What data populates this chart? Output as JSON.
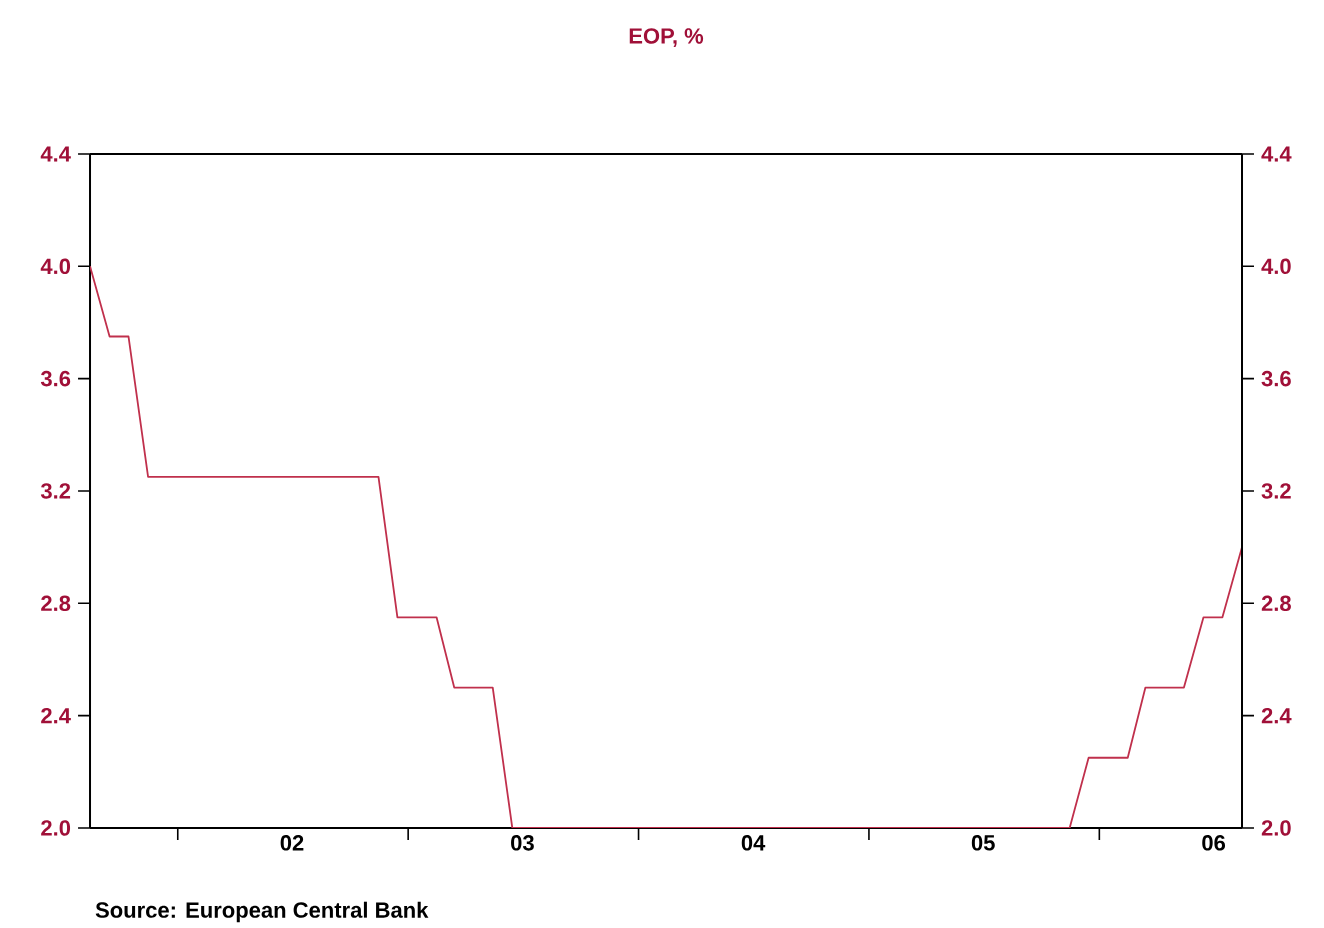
{
  "chart_data": {
    "type": "line",
    "title": "EOP, %",
    "x": [
      "2001-08-15",
      "2001-09-15",
      "2001-10-15",
      "2001-11-15",
      "2002-11-15",
      "2002-12-15",
      "2003-02-15",
      "2003-03-15",
      "2003-05-15",
      "2003-06-15",
      "2005-11-15",
      "2005-12-15",
      "2006-02-15",
      "2006-03-15",
      "2006-05-15",
      "2006-06-15",
      "2006-07-15",
      "2006-08-15"
    ],
    "series": [
      {
        "color": "#c0304c",
        "values": [
          4.0,
          3.75,
          3.75,
          3.25,
          3.25,
          2.75,
          2.75,
          2.5,
          2.5,
          2.0,
          2.0,
          2.25,
          2.25,
          2.5,
          2.5,
          2.75,
          2.75,
          3.0
        ]
      }
    ],
    "xlim": [
      "2001-08-15",
      "2006-08-15"
    ],
    "xticks": [
      {
        "value": "2002-01-01",
        "label": null
      },
      {
        "value": "2003-01-01",
        "label": null
      },
      {
        "value": "2004-01-01",
        "label": null
      },
      {
        "value": "2005-01-01",
        "label": null
      },
      {
        "value": "2006-01-01",
        "label": null
      },
      {
        "value": "2002-07-01",
        "label": "02"
      },
      {
        "value": "2003-07-01",
        "label": "03"
      },
      {
        "value": "2004-07-01",
        "label": "04"
      },
      {
        "value": "2005-07-01",
        "label": "05"
      },
      {
        "value": "2006-07-01",
        "label": "06"
      }
    ],
    "ylim": [
      2.0,
      4.4
    ],
    "yticks": [
      {
        "value": 2.0,
        "label": "2.0"
      },
      {
        "value": 2.4,
        "label": "2.4"
      },
      {
        "value": 2.8,
        "label": "2.8"
      },
      {
        "value": 3.2,
        "label": "3.2"
      },
      {
        "value": 3.6,
        "label": "3.6"
      },
      {
        "value": 4.0,
        "label": "4.0"
      },
      {
        "value": 4.4,
        "label": "4.4"
      }
    ],
    "y2lim": [
      2.0,
      4.4
    ],
    "y2ticks": [
      {
        "value": 2.0,
        "label": "2.0"
      },
      {
        "value": 2.4,
        "label": "2.4"
      },
      {
        "value": 2.8,
        "label": "2.8"
      },
      {
        "value": 3.2,
        "label": "3.2"
      },
      {
        "value": 3.6,
        "label": "3.6"
      },
      {
        "value": 4.0,
        "label": "4.0"
      },
      {
        "value": 4.4,
        "label": "4.4"
      }
    ],
    "grid": false,
    "annotations": [
      "Source:  European Central Bank"
    ]
  }
}
